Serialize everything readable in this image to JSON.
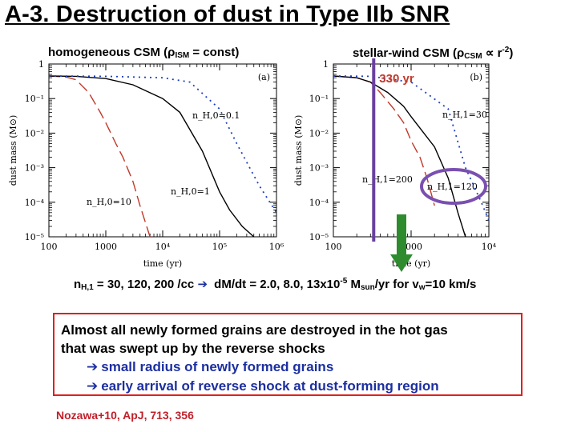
{
  "slide": {
    "title": "A-3. Destruction of dust in Type IIb SNR",
    "reference": "Nozawa+10, ApJ, 713, 356"
  },
  "panel_a": {
    "heading_before": "homogeneous CSM (ρ",
    "heading_sub": "ISM",
    "heading_after": " = const)"
  },
  "panel_b": {
    "heading_before": "stellar-wind CSM (ρ",
    "heading_sub": "CSM",
    "heading_mid": " ∝ r",
    "heading_sup": "-2",
    "heading_after": ")",
    "marker_label": "330 yr"
  },
  "equation": {
    "p1": "n",
    "p1_sub": "H,1",
    "p2": " = 30, 120, 200 /cc ",
    "arrow": "➔",
    "p3": " d",
    "p4": "M/dt = 2.0, 8.0, 13x10",
    "p4_sup": "-5",
    "p5": " M",
    "p5_sub": "sun",
    "p6": "/yr for v",
    "p6_sub": "w",
    "p7": "=10 km/s"
  },
  "summary": {
    "line1": "Almost all newly formed grains are destroyed in the hot gas",
    "line2": "that was swept up by the reverse shocks",
    "arrow": "➔",
    "reason1": "small radius of newly formed grains",
    "reason2": "early arrival of reverse shock at dust-forming region"
  },
  "colors": {
    "dashed_curve": "#c0392b",
    "dotted_curve": "#1f3fbf",
    "solid_curve": "#000000",
    "marker_line": "#6a3fa0",
    "highlight_circle": "#7a4fb0",
    "green_arrow": "#2e8b2e",
    "box_border": "#e0201c",
    "reference_text": "#c0202a"
  },
  "chart_data": [
    {
      "type": "line",
      "title": "",
      "panel_label": "(a)",
      "xlabel": "time (yr)",
      "ylabel": "dust mass (M⊙)",
      "xscale": "log",
      "yscale": "log",
      "xlim": [
        100,
        1000000
      ],
      "ylim": [
        1e-05,
        1
      ],
      "xtick_labels": [
        "100",
        "1000",
        "10⁴",
        "10⁵",
        "10⁶"
      ],
      "ytick_labels": [
        "1",
        "10⁻¹",
        "10⁻²",
        "10⁻³",
        "10⁻⁴",
        "10⁻⁵"
      ],
      "x_ticks": [
        100,
        1000,
        10000,
        100000,
        1000000
      ],
      "y_ticks": [
        1,
        0.1,
        0.01,
        0.001,
        0.0001,
        1e-05
      ],
      "grid": false,
      "series": [
        {
          "name": "n_H,0=10",
          "style": "dashed",
          "color": "#c0392b",
          "x": [
            100,
            200,
            300,
            500,
            800,
            1000,
            1500,
            2000,
            3000,
            4000,
            6000
          ],
          "y": [
            0.45,
            0.42,
            0.35,
            0.15,
            0.04,
            0.02,
            0.005,
            0.002,
            0.0004,
            8e-05,
            1e-05
          ]
        },
        {
          "name": "n_H,0=1",
          "style": "solid",
          "color": "#000000",
          "x": [
            100,
            300,
            1000,
            3000,
            10000,
            20000,
            50000,
            100000,
            150000,
            250000,
            400000
          ],
          "y": [
            0.45,
            0.44,
            0.38,
            0.25,
            0.1,
            0.04,
            0.003,
            0.0002,
            6e-05,
            2e-05,
            1e-05
          ]
        },
        {
          "name": "",
          "style": "dotted",
          "color": "#1f3fbf",
          "x": [
            100,
            1000,
            10000,
            30000,
            100000,
            200000,
            500000,
            1000000
          ],
          "y": [
            0.45,
            0.44,
            0.4,
            0.3,
            0.05,
            0.005,
            0.0003,
            5e-05
          ]
        }
      ],
      "annotations": [
        "n_H,0=0.1",
        "n_H,0=1",
        "n_H,0=10"
      ]
    },
    {
      "type": "line",
      "title": "",
      "panel_label": "(b)",
      "xlabel": "time (yr)",
      "ylabel": "dust mass (M⊙)",
      "xscale": "log",
      "yscale": "log",
      "xlim": [
        100,
        10000
      ],
      "ylim": [
        1e-05,
        1
      ],
      "xtick_labels": [
        "100",
        "1000",
        "10⁴"
      ],
      "ytick_labels": [
        "1",
        "10⁻¹",
        "10⁻²",
        "10⁻³",
        "10⁻⁴",
        "10⁻⁵"
      ],
      "x_ticks": [
        100,
        1000,
        10000
      ],
      "y_ticks": [
        1,
        0.1,
        0.01,
        0.001,
        0.0001,
        1e-05
      ],
      "grid": false,
      "series": [
        {
          "name": "n_H,1=200",
          "style": "dashed",
          "color": "#c0392b",
          "x": [
            100,
            200,
            300,
            400,
            600,
            800,
            1000,
            1300,
            1600,
            2000
          ],
          "y": [
            0.45,
            0.4,
            0.3,
            0.15,
            0.05,
            0.02,
            0.006,
            0.002,
            0.0005,
            8e-05
          ]
        },
        {
          "name": "n_H,1=120",
          "style": "solid",
          "color": "#000000",
          "x": [
            100,
            200,
            300,
            500,
            800,
            1000,
            2000,
            3000,
            4000,
            5000
          ],
          "y": [
            0.45,
            0.4,
            0.3,
            0.15,
            0.06,
            0.03,
            0.004,
            0.0005,
            5e-05,
            1e-05
          ]
        },
        {
          "name": "n_H,1=30",
          "style": "dotted",
          "color": "#1f3fbf",
          "x": [
            100,
            300,
            1000,
            3000,
            5000,
            8000,
            10000
          ],
          "y": [
            0.45,
            0.44,
            0.3,
            0.05,
            0.001,
            0.0001,
            3e-05
          ]
        }
      ],
      "marker": {
        "x": 330,
        "label": "330 yr"
      },
      "annotations": [
        "n_H,1=30",
        "n_H,1=200",
        "n_H,1=120"
      ]
    }
  ]
}
